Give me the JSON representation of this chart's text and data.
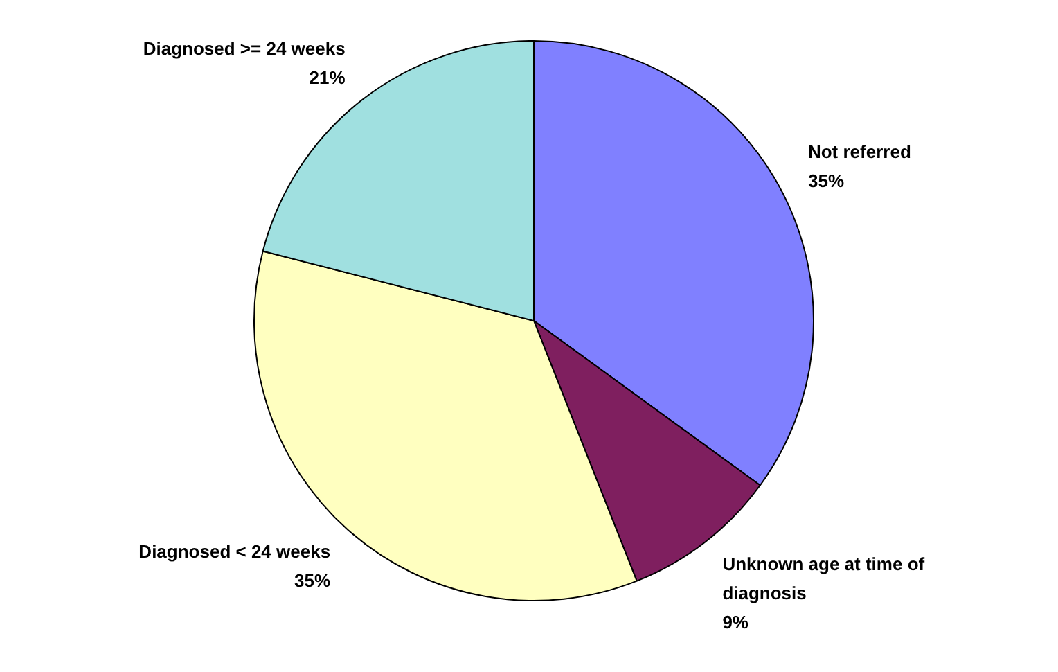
{
  "chart_data": {
    "type": "pie",
    "categories": [
      "Not referred",
      "Unknown age at time of diagnosis",
      "Diagnosed < 24 weeks",
      "Diagnosed >= 24 weeks"
    ],
    "values": [
      35,
      9,
      35,
      21
    ],
    "colors": [
      "#8080ff",
      "#7f1f5f",
      "#ffffc0",
      "#a0e0e0"
    ],
    "value_labels": [
      "35%",
      "9%",
      "35%",
      "21%"
    ]
  }
}
